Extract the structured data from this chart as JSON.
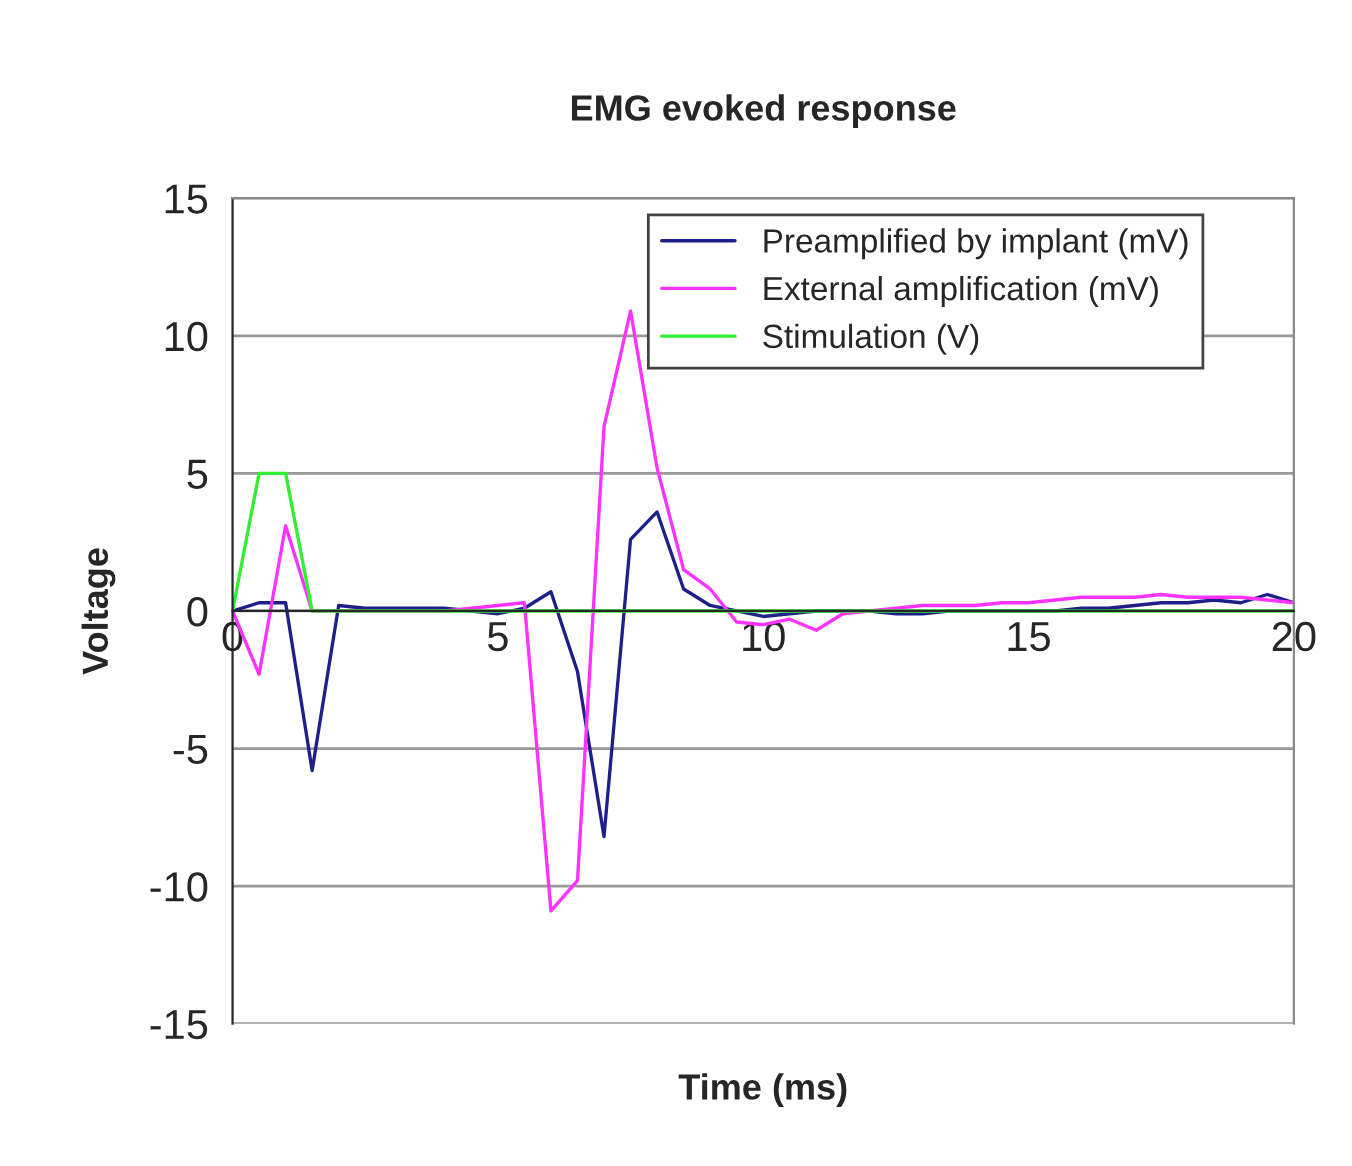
{
  "chart_data": {
    "type": "line",
    "title": "EMG evoked response",
    "xlabel": "Time (ms)",
    "ylabel": "Voltage",
    "x": [
      0,
      0.5,
      1,
      1.5,
      2,
      2.5,
      3,
      3.5,
      4,
      4.5,
      5,
      5.5,
      6,
      6.5,
      7,
      7.5,
      8,
      8.5,
      9,
      9.5,
      10,
      10.5,
      11,
      11.5,
      12,
      12.5,
      13,
      13.5,
      14,
      14.5,
      15,
      15.5,
      16,
      16.5,
      17,
      17.5,
      18,
      18.5,
      19,
      19.5,
      20
    ],
    "series": [
      {
        "name": "Preamplified by implant (mV)",
        "color": "#1f1f8a",
        "values": [
          0,
          0.3,
          0.3,
          -5.8,
          0.2,
          0.1,
          0.1,
          0.1,
          0.1,
          0,
          -0.1,
          0.1,
          0.7,
          -2.2,
          -8.2,
          2.6,
          3.6,
          0.8,
          0.2,
          0,
          -0.2,
          -0.1,
          0,
          0,
          0,
          -0.1,
          -0.1,
          0,
          0,
          0,
          0,
          0,
          0.1,
          0.1,
          0.2,
          0.3,
          0.3,
          0.4,
          0.3,
          0.6,
          0.3
        ]
      },
      {
        "name": "External amplification (mV)",
        "color": "#ff33ff",
        "values": [
          0,
          -2.3,
          3.1,
          0,
          0,
          0,
          0,
          0,
          0,
          0.1,
          0.2,
          0.3,
          -10.9,
          -9.8,
          6.7,
          10.9,
          5.2,
          1.5,
          0.8,
          -0.4,
          -0.5,
          -0.3,
          -0.7,
          -0.1,
          0,
          0.1,
          0.2,
          0.2,
          0.2,
          0.3,
          0.3,
          0.4,
          0.5,
          0.5,
          0.5,
          0.6,
          0.5,
          0.5,
          0.5,
          0.4,
          0.3
        ]
      },
      {
        "name": "Stimulation (V)",
        "color": "#33ee33",
        "values": [
          0,
          5,
          5,
          0,
          0,
          0,
          0,
          0,
          0,
          0,
          0,
          0,
          0,
          0,
          0,
          0,
          0,
          0,
          0,
          0,
          0,
          0,
          0,
          0,
          0,
          0,
          0,
          0,
          0,
          0,
          0,
          0,
          0,
          0,
          0,
          0,
          0,
          0,
          0,
          0,
          0
        ]
      }
    ],
    "xlim": [
      0,
      20
    ],
    "xticks": [
      0,
      5,
      10,
      15,
      20
    ],
    "ylim": [
      -15,
      15
    ],
    "yticks": [
      -15,
      -10,
      -5,
      0,
      5,
      10,
      15
    ],
    "grid": "y",
    "legend": "top right",
    "marker": "none",
    "line_style": "solid"
  }
}
